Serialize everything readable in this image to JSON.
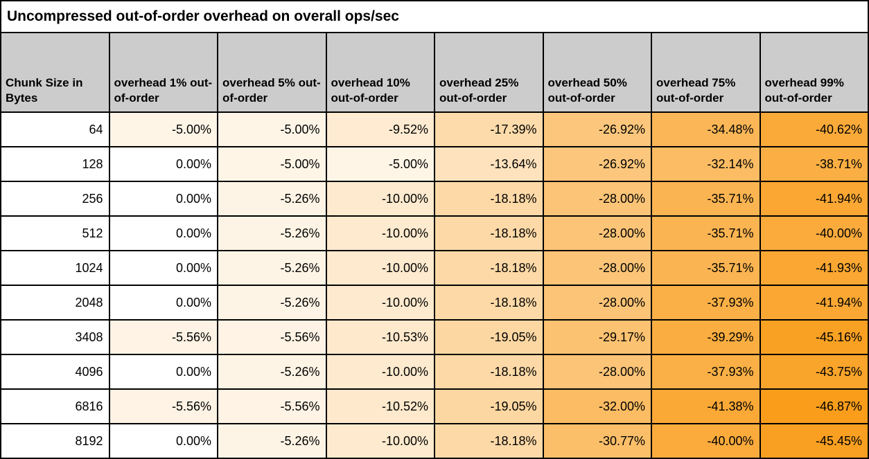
{
  "title": "Uncompressed out-of-order overhead on overall ops/sec",
  "colors": {
    "title_bg": "#FFFFFF",
    "header_bg": "#CCCCCC",
    "border": "#000000",
    "scale_start": "#FFFFFF",
    "scale_end": "#F99D1B",
    "scale_max_abs": 46.87
  },
  "chart_data": {
    "type": "table",
    "title": "Uncompressed out-of-order overhead on overall ops/sec",
    "columns": [
      "Chunk Size in Bytes",
      "overhead 1% out-of-order",
      "overhead 5% out-of-order",
      "overhead 10% out-of-order",
      "overhead 25% out-of-order",
      "overhead 50% out-of-order",
      "overhead 75% out-of-order",
      "overhead 99% out-of-order"
    ],
    "value_unit": "percent",
    "value_format": "2dp_percent",
    "rows": [
      {
        "chunk": "64",
        "values": [
          -5.0,
          -5.0,
          -9.52,
          -17.39,
          -26.92,
          -34.48,
          -40.62
        ]
      },
      {
        "chunk": "128",
        "values": [
          0.0,
          -5.0,
          -5.0,
          -13.64,
          -26.92,
          -32.14,
          -38.71
        ]
      },
      {
        "chunk": "256",
        "values": [
          0.0,
          -5.26,
          -10.0,
          -18.18,
          -28.0,
          -35.71,
          -41.94
        ]
      },
      {
        "chunk": "512",
        "values": [
          0.0,
          -5.26,
          -10.0,
          -18.18,
          -28.0,
          -35.71,
          -40.0
        ]
      },
      {
        "chunk": "1024",
        "values": [
          0.0,
          -5.26,
          -10.0,
          -18.18,
          -28.0,
          -35.71,
          -41.93
        ]
      },
      {
        "chunk": "2048",
        "values": [
          0.0,
          -5.26,
          -10.0,
          -18.18,
          -28.0,
          -37.93,
          -41.94
        ]
      },
      {
        "chunk": "3408",
        "values": [
          -5.56,
          -5.56,
          -10.53,
          -19.05,
          -29.17,
          -39.29,
          -45.16
        ]
      },
      {
        "chunk": "4096",
        "values": [
          0.0,
          -5.26,
          -10.0,
          -18.18,
          -28.0,
          -37.93,
          -43.75
        ]
      },
      {
        "chunk": "6816",
        "values": [
          -5.56,
          -5.56,
          -10.52,
          -19.05,
          -32.0,
          -41.38,
          -46.87
        ]
      },
      {
        "chunk": "8192",
        "values": [
          0.0,
          -5.26,
          -10.0,
          -18.18,
          -30.77,
          -40.0,
          -45.45
        ]
      }
    ],
    "layout": {
      "color_scale_note": "cell background interpolates from scale_start at 0 to scale_end at most negative value"
    }
  }
}
